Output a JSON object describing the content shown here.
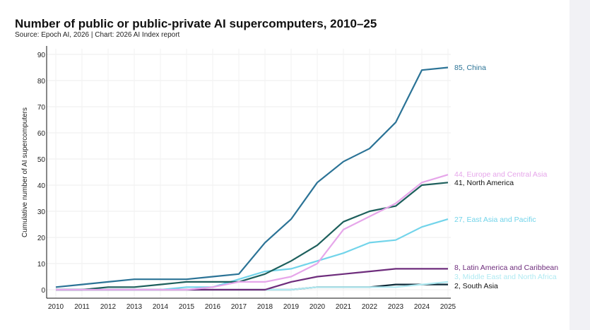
{
  "chart_data": {
    "type": "line",
    "title": "Number of public or public-private AI supercomputers, 2010–25",
    "subtitle": "Source: Epoch AI, 2026 | Chart: 2026 AI Index report",
    "xlabel": "",
    "ylabel": "Cumulative number of AI supercomputers",
    "x": [
      2010,
      2011,
      2012,
      2013,
      2014,
      2015,
      2016,
      2017,
      2018,
      2019,
      2020,
      2021,
      2022,
      2023,
      2024,
      2025
    ],
    "ylim": [
      0,
      90
    ],
    "yticks": [
      0,
      10,
      20,
      30,
      40,
      50,
      60,
      70,
      80,
      90
    ],
    "grid": true,
    "legend": "end-of-line labels",
    "series": [
      {
        "name": "China",
        "label": "85, China",
        "color": "#2b7396",
        "values": [
          1,
          2,
          3,
          4,
          4,
          4,
          5,
          6,
          18,
          27,
          41,
          49,
          54,
          64,
          84,
          85
        ]
      },
      {
        "name": "Europe and Central Asia",
        "label": "44, Europe and Central Asia",
        "color": "#e6a6ea",
        "values": [
          0,
          0,
          0,
          0,
          0,
          0,
          1,
          3,
          3,
          5,
          10,
          23,
          28,
          33,
          41,
          44
        ]
      },
      {
        "name": "North America",
        "label": "41, North America",
        "color": "#1d5f5c",
        "values": [
          0,
          0,
          1,
          1,
          2,
          3,
          3,
          3,
          6,
          11,
          17,
          26,
          30,
          32,
          40,
          41
        ]
      },
      {
        "name": "East Asia and Pacific",
        "label": "27, East Asia and Pacific",
        "color": "#72d4ea",
        "values": [
          0,
          0,
          0,
          0,
          0,
          1,
          1,
          4,
          7,
          8,
          11,
          14,
          18,
          19,
          24,
          27
        ]
      },
      {
        "name": "Latin America and Caribbean",
        "label": "8, Latin America and Caribbean",
        "color": "#6e2d7c",
        "values": [
          0,
          0,
          0,
          0,
          0,
          0,
          0,
          0,
          0,
          3,
          5,
          6,
          7,
          8,
          8,
          8
        ]
      },
      {
        "name": "Middle East and North Africa",
        "label": "3, Middle East and North Africa",
        "color": "#b0eaf2",
        "values": [
          0,
          0,
          0,
          0,
          0,
          0,
          0,
          0,
          0,
          0,
          1,
          1,
          1,
          1,
          2,
          3
        ]
      },
      {
        "name": "South Asia",
        "label": "2, South Asia",
        "color": "#0e2a38",
        "values": [
          0,
          0,
          0,
          0,
          0,
          0,
          0,
          0,
          0,
          0,
          1,
          1,
          1,
          2,
          2,
          2
        ]
      }
    ]
  }
}
